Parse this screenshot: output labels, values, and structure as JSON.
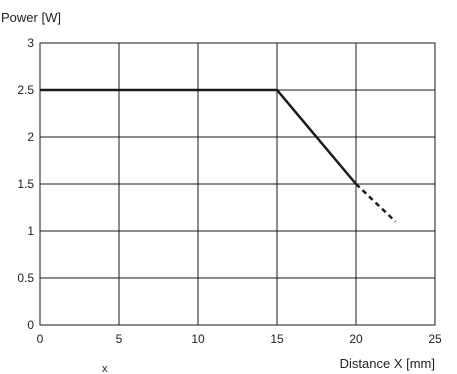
{
  "chart_data": {
    "type": "line",
    "ylabel": "Power [W]",
    "xlabel": "Distance X [mm]",
    "xlim": [
      0,
      25
    ],
    "ylim": [
      0,
      3
    ],
    "x_ticks": [
      0,
      5,
      10,
      15,
      20,
      25
    ],
    "x_tick_labels": [
      "0",
      "5",
      "10",
      "15",
      "20",
      "25"
    ],
    "y_ticks": [
      0,
      0.5,
      1,
      1.5,
      2,
      2.5,
      3
    ],
    "y_tick_labels": [
      "0",
      "0.5",
      "1",
      "1.5",
      "2",
      "2.5",
      "3"
    ],
    "grid": true,
    "series": [
      {
        "style": "solid",
        "x": [
          0,
          15,
          20
        ],
        "y": [
          2.5,
          2.5,
          1.5
        ]
      },
      {
        "style": "dashed",
        "x": [
          20,
          22.5
        ],
        "y": [
          1.5,
          1.1
        ]
      }
    ],
    "colors": {
      "line": "#1a1a1a",
      "grid": "#1a1a1a"
    },
    "fragment_text": "x"
  }
}
